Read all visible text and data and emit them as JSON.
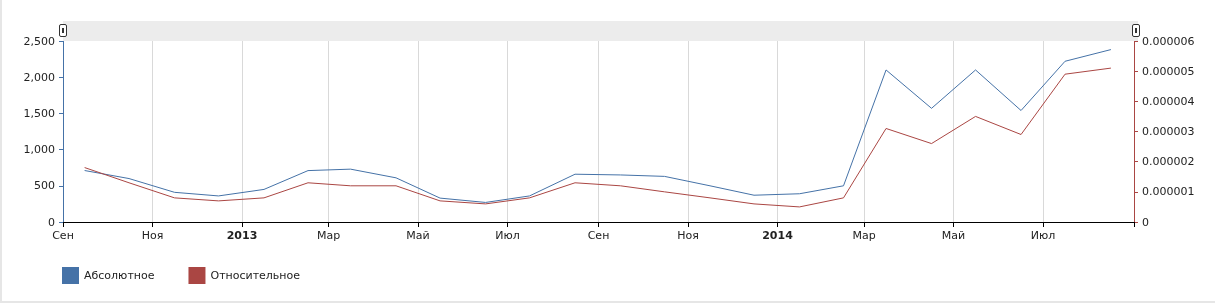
{
  "chart_data": {
    "type": "line",
    "x": [
      "2012-09-16",
      "2012-10-16",
      "2012-11-16",
      "2012-12-16",
      "2013-01-16",
      "2013-02-15",
      "2013-03-16",
      "2013-04-16",
      "2013-05-16",
      "2013-06-16",
      "2013-07-16",
      "2013-08-16",
      "2013-09-16",
      "2013-10-16",
      "2013-11-16",
      "2013-12-16",
      "2014-01-16",
      "2014-02-15",
      "2014-03-16",
      "2014-04-16",
      "2014-05-16",
      "2014-06-16",
      "2014-07-16",
      "2014-08-16"
    ],
    "series": [
      {
        "name": "Абсолютное",
        "color": "#4572a7",
        "values": [
          710,
          600,
          410,
          360,
          450,
          710,
          730,
          610,
          330,
          270,
          360,
          660,
          650,
          630,
          500,
          370,
          390,
          500,
          2100,
          1570,
          2100,
          1540,
          2220,
          2380
        ]
      },
      {
        "name": "Относительное",
        "color": "#aa4643",
        "axis": "y2",
        "values": [
          1.8e-06,
          1.3e-06,
          8e-07,
          7e-07,
          8e-07,
          1.3e-06,
          1.2e-06,
          1.2e-06,
          7e-07,
          6e-07,
          8e-07,
          1.3e-06,
          1.2e-06,
          1e-06,
          8e-07,
          6e-07,
          5e-07,
          8e-07,
          3.1e-06,
          2.6e-06,
          3.5e-06,
          2.9e-06,
          4.9e-06,
          5.1e-06
        ]
      }
    ],
    "xlim": [
      "2012-09-01",
      "2014-09-01"
    ],
    "xticks": [
      {
        "value": "2012-09-01",
        "label": "Сен"
      },
      {
        "value": "2012-11-01",
        "label": "Ноя"
      },
      {
        "value": "2013-01-01",
        "label": "2013"
      },
      {
        "value": "2013-03-01",
        "label": "Мар"
      },
      {
        "value": "2013-05-01",
        "label": "Май"
      },
      {
        "value": "2013-07-01",
        "label": "Июл"
      },
      {
        "value": "2013-09-01",
        "label": "Сен"
      },
      {
        "value": "2013-11-01",
        "label": "Ноя"
      },
      {
        "value": "2014-01-01",
        "label": "2014"
      },
      {
        "value": "2014-03-01",
        "label": "Мар"
      },
      {
        "value": "2014-05-01",
        "label": "Май"
      },
      {
        "value": "2014-07-01",
        "label": "Июл"
      },
      {
        "value": "2014-09-01",
        "label": null
      }
    ],
    "ylim": [
      0,
      2500
    ],
    "yticks": [
      0,
      500,
      {
        "value": 1000,
        "label": "1,000"
      },
      {
        "value": 1500,
        "label": "1,500"
      },
      {
        "value": 2000,
        "label": "2,000"
      },
      {
        "value": 2500,
        "label": "2,500"
      }
    ],
    "y2lim": [
      0,
      6e-06
    ],
    "y2ticks": [
      0,
      {
        "value": 1e-06,
        "label": "0.000001"
      },
      {
        "value": 2e-06,
        "label": "0.000002"
      },
      {
        "value": 3e-06,
        "label": "0.000003"
      },
      {
        "value": 4e-06,
        "label": "0.000004"
      },
      {
        "value": 5e-06,
        "label": "0.000005"
      },
      {
        "value": 6e-06,
        "label": "0.000006"
      }
    ],
    "grid": "x",
    "legend": "bottom left",
    "marker": "none",
    "line_style": "solid"
  }
}
